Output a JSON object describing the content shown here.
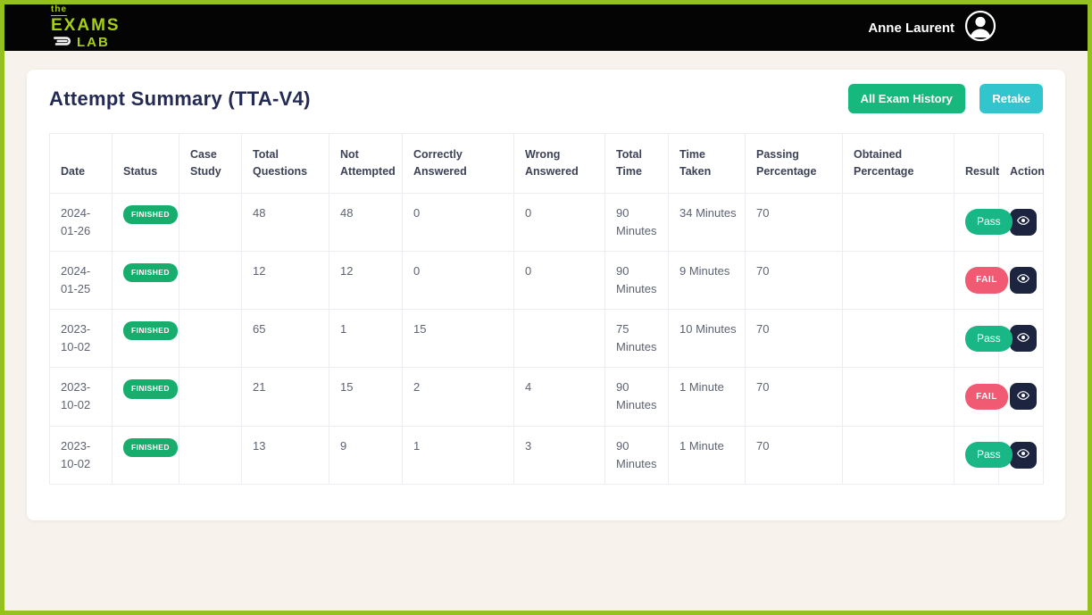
{
  "header": {
    "logo": {
      "line1": "the",
      "line2": "EXAMS",
      "line3": "LAB"
    },
    "user_name": "Anne Laurent"
  },
  "page": {
    "title": "Attempt Summary (TTA-V4)",
    "all_exam_history_label": "All Exam History",
    "retake_label": "Retake"
  },
  "table": {
    "columns": [
      "Date",
      "Status",
      "Case Study",
      "Total Questions",
      "Not Attempted",
      "Correctly Answered",
      "Wrong Answered",
      "Total Time",
      "Time Taken",
      "Passing Percentage",
      "Obtained Percentage",
      "Result",
      "Action"
    ],
    "rows": [
      {
        "date": "2024-01-26",
        "status": "FINISHED",
        "case_study": "",
        "total_questions": "48",
        "not_attempted": "48",
        "correctly_answered": "0",
        "wrong_answered": "0",
        "total_time": "90 Minutes",
        "time_taken": "34 Minutes",
        "passing_percentage": "70",
        "obtained_percentage": "",
        "result": "Pass"
      },
      {
        "date": "2024-01-25",
        "status": "FINISHED",
        "case_study": "",
        "total_questions": "12",
        "not_attempted": "12",
        "correctly_answered": "0",
        "wrong_answered": "0",
        "total_time": "90 Minutes",
        "time_taken": "9 Minutes",
        "passing_percentage": "70",
        "obtained_percentage": "",
        "result": "FAIL"
      },
      {
        "date": "2023-10-02",
        "status": "FINISHED",
        "case_study": "",
        "total_questions": "65",
        "not_attempted": "1",
        "correctly_answered": "15",
        "wrong_answered": "",
        "total_time": "75 Minutes",
        "time_taken": "10 Minutes",
        "passing_percentage": "70",
        "obtained_percentage": "",
        "result": "Pass"
      },
      {
        "date": "2023-10-02",
        "status": "FINISHED",
        "case_study": "",
        "total_questions": "21",
        "not_attempted": "15",
        "correctly_answered": "2",
        "wrong_answered": "4",
        "total_time": "90 Minutes",
        "time_taken": "1 Minute",
        "passing_percentage": "70",
        "obtained_percentage": "",
        "result": "FAIL"
      },
      {
        "date": "2023-10-02",
        "status": "FINISHED",
        "case_study": "",
        "total_questions": "13",
        "not_attempted": "9",
        "correctly_answered": "1",
        "wrong_answered": "3",
        "total_time": "90 Minutes",
        "time_taken": "1 Minute",
        "passing_percentage": "70",
        "obtained_percentage": "",
        "result": "Pass"
      }
    ]
  },
  "colors": {
    "page_border_green": "#94c11f",
    "header_bg": "#040404",
    "brand_green": "#a6cf13",
    "page_bg": "#f8f2ec",
    "title_navy": "#232a54",
    "history_button_green": "#15b87d",
    "retake_button_teal": "#31c6ce",
    "finished_badge_green": "#16ad6d",
    "pass_green": "#19b785",
    "fail_red": "#f05a72",
    "action_button_navy": "#1d2440"
  }
}
